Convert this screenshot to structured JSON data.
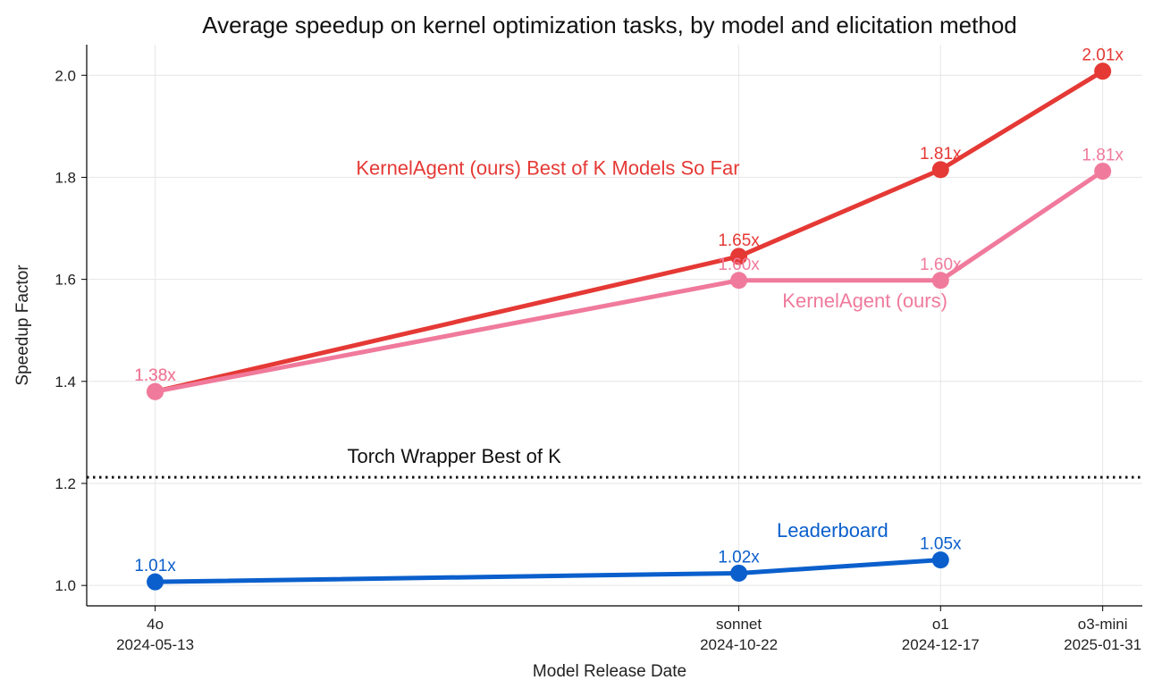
{
  "chart_data": {
    "type": "line",
    "title": "Average speedup on kernel optimization tasks, by model and elicitation method",
    "xlabel": "Model Release Date",
    "ylabel": "Speedup Factor",
    "ylim": [
      0.96,
      2.06
    ],
    "xlim": [
      "2024-04-24",
      "2025-02-11"
    ],
    "grid": true,
    "x_ticks": [
      {
        "date": "2024-05-13",
        "model": "4o",
        "label": "2024-05-13"
      },
      {
        "date": "2024-10-22",
        "model": "sonnet",
        "label": "2024-10-22"
      },
      {
        "date": "2024-12-17",
        "model": "o1",
        "label": "2024-12-17"
      },
      {
        "date": "2025-01-31",
        "model": "o3-mini",
        "label": "2025-01-31"
      }
    ],
    "y_ticks": [
      {
        "value": 1.0,
        "label": "1.0"
      },
      {
        "value": 1.2,
        "label": "1.2"
      },
      {
        "value": 1.4,
        "label": "1.4"
      },
      {
        "value": 1.6,
        "label": "1.6"
      },
      {
        "value": 1.8,
        "label": "1.8"
      },
      {
        "value": 2.0,
        "label": "2.0"
      }
    ],
    "series": [
      {
        "name": "KernelAgent (ours) Best of K Models So Far",
        "color": "#e53935",
        "x": [
          "2024-05-13",
          "2024-10-22",
          "2024-12-17",
          "2025-01-31"
        ],
        "values": [
          1.38,
          1.645,
          1.815,
          2.008
        ],
        "labels": [
          "1.38x",
          "1.65x",
          "1.81x",
          "2.01x"
        ]
      },
      {
        "name": "KernelAgent (ours)",
        "color": "#f07a9c",
        "x": [
          "2024-05-13",
          "2024-10-22",
          "2024-12-17",
          "2025-01-31"
        ],
        "values": [
          1.38,
          1.598,
          1.598,
          1.812
        ],
        "labels": [
          "1.38x",
          "1.60x",
          "1.60x",
          "1.81x"
        ]
      },
      {
        "name": "Leaderboard",
        "color": "#0a5fcc",
        "x": [
          "2024-05-13",
          "2024-10-22",
          "2024-12-17"
        ],
        "values": [
          1.007,
          1.024,
          1.05
        ],
        "labels": [
          "1.01x",
          "1.02x",
          "1.05x"
        ]
      }
    ],
    "reference_lines": [
      {
        "name": "Torch Wrapper Best of K",
        "value": 1.212,
        "style": "dotted",
        "color": "#111111"
      }
    ],
    "annotations": [
      {
        "text": "KernelAgent (ours) Best of K Models So Far",
        "series": 0,
        "date": "2024-08-30",
        "value": 1.805
      },
      {
        "text": "KernelAgent (ours)",
        "series": 1,
        "date": "2024-11-26",
        "value": 1.545
      },
      {
        "text": "Leaderboard",
        "series": 2,
        "date": "2024-11-17",
        "value": 1.095
      },
      {
        "text": "Torch Wrapper Best of K",
        "reference": 0,
        "date": "2024-08-04",
        "value": 1.24
      }
    ]
  }
}
